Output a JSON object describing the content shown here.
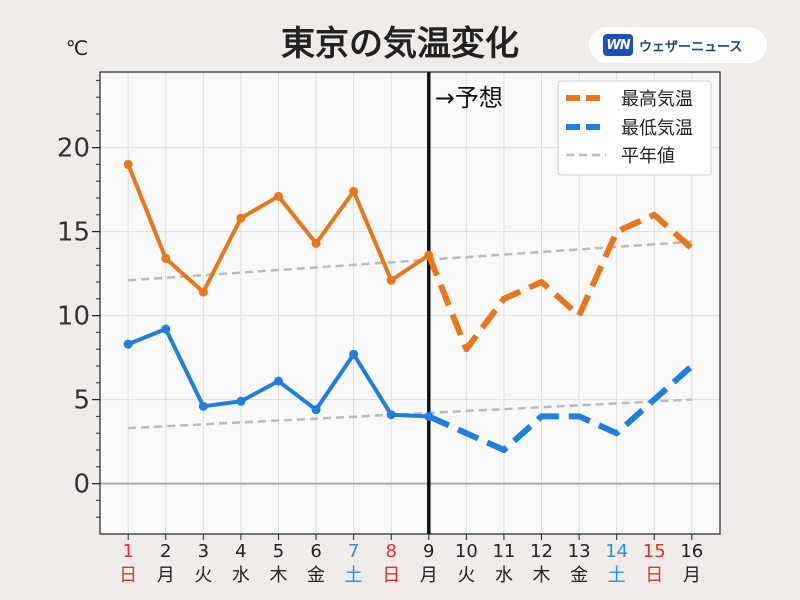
{
  "brand": {
    "mark": "WN",
    "name": "ウェザーニュース"
  },
  "chart_data": {
    "type": "line",
    "title": "東京の気温変化",
    "ylabel": "℃",
    "ylim": [
      -3,
      24.5
    ],
    "yticks": [
      0,
      5,
      10,
      15,
      20
    ],
    "grid": true,
    "legend_position": "top-right",
    "forecast_label": "→予想",
    "forecast_start": 9,
    "x": [
      1,
      2,
      3,
      4,
      5,
      6,
      7,
      8,
      9,
      10,
      11,
      12,
      13,
      14,
      15,
      16
    ],
    "tick_days": [
      "1",
      "2",
      "3",
      "4",
      "5",
      "6",
      "7",
      "8",
      "9",
      "10",
      "11",
      "12",
      "13",
      "14",
      "15",
      "16"
    ],
    "tick_weekdays": [
      "日",
      "月",
      "火",
      "水",
      "木",
      "金",
      "土",
      "日",
      "月",
      "火",
      "水",
      "木",
      "金",
      "土",
      "日",
      "月"
    ],
    "tick_colors": [
      "#e03030",
      "#222222",
      "#222222",
      "#222222",
      "#222222",
      "#222222",
      "#2e8be0",
      "#e03030",
      "#222222",
      "#222222",
      "#222222",
      "#222222",
      "#222222",
      "#2e8be0",
      "#e03030",
      "#222222"
    ],
    "series": [
      {
        "name": "最高気温",
        "color": "#e8761a",
        "values": [
          19.0,
          13.4,
          11.4,
          15.8,
          17.1,
          14.3,
          17.4,
          12.1,
          13.6,
          8,
          11,
          12,
          10,
          15,
          16,
          14
        ]
      },
      {
        "name": "最低気温",
        "color": "#1e7fe0",
        "values": [
          8.3,
          9.2,
          4.6,
          4.9,
          6.1,
          4.4,
          7.7,
          4.1,
          4.0,
          3,
          2,
          4,
          4,
          3,
          5,
          7
        ]
      },
      {
        "name": "平年値",
        "color": "#bbbbbb",
        "values": [
          [
            12.1,
            14.4
          ],
          [
            3.3,
            5.0
          ]
        ]
      }
    ]
  }
}
